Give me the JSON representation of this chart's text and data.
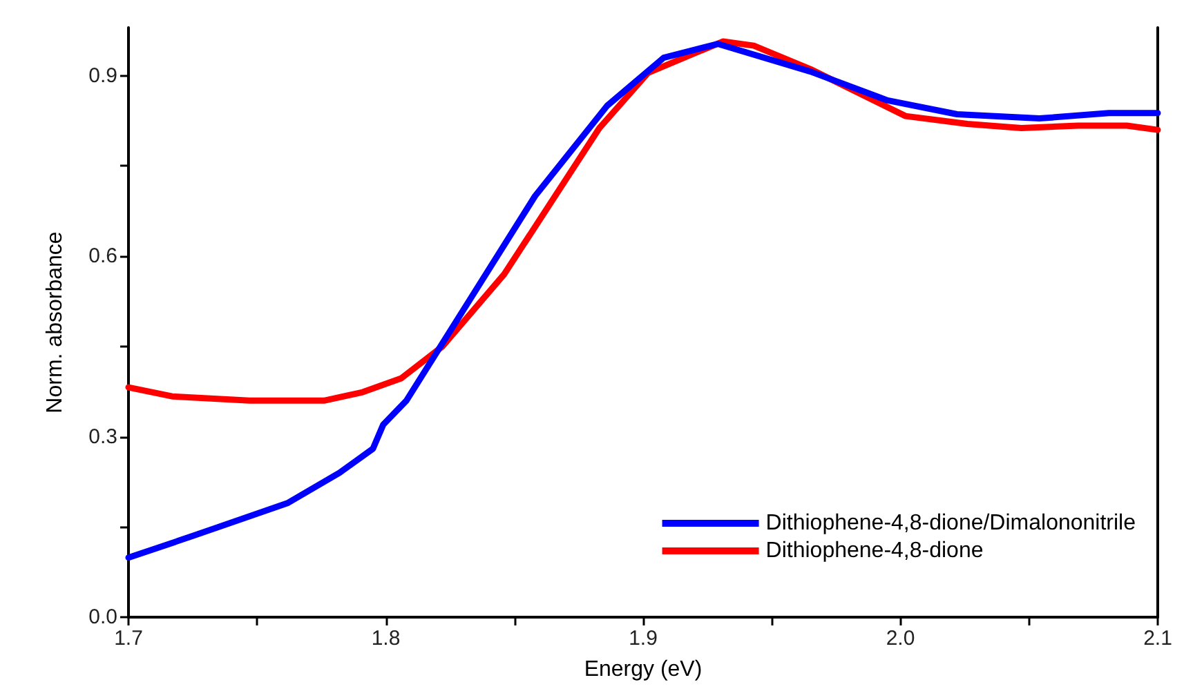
{
  "chart_data": {
    "type": "line",
    "xlabel": "Energy (eV)",
    "ylabel": "Norm. absorbance",
    "xlim": [
      1.7,
      2.1
    ],
    "ylim": [
      0,
      0.98
    ],
    "xticks": [
      1.7,
      {
        "value": 1.75,
        "label": null
      },
      1.8,
      {
        "value": 1.85,
        "label": null
      },
      1.9,
      {
        "value": 1.95,
        "label": null
      },
      {
        "value": 2.0,
        "label": "2.0"
      },
      {
        "value": 2.05,
        "label": null
      },
      2.1
    ],
    "yticks": [
      {
        "value": 0,
        "label": "0.0"
      },
      {
        "value": 0.15,
        "label": null
      },
      0.3,
      {
        "value": 0.45,
        "label": null
      },
      0.6,
      {
        "value": 0.75,
        "label": null
      },
      0.9
    ],
    "legend": "bottom right",
    "grid": false,
    "marker": "none",
    "line_style": "solid",
    "series": [
      {
        "name": "Dithiophene-4,8-dione/Dimalononitrile",
        "color": "#0000ff",
        "x": [
          1.7,
          1.725,
          1.762,
          1.782,
          1.795,
          1.799,
          1.808,
          1.833,
          1.858,
          1.886,
          1.908,
          1.929,
          1.965,
          1.995,
          2.022,
          2.054,
          2.081,
          2.1
        ],
        "values": [
          0.099,
          0.135,
          0.19,
          0.24,
          0.28,
          0.32,
          0.36,
          0.53,
          0.7,
          0.85,
          0.93,
          0.953,
          0.907,
          0.859,
          0.836,
          0.829,
          0.838,
          0.838
        ]
      },
      {
        "name": "Dithiophene-4,8-dione",
        "color": "#ff0000",
        "x": [
          1.7,
          1.717,
          1.747,
          1.776,
          1.791,
          1.806,
          1.822,
          1.846,
          1.883,
          1.902,
          1.931,
          1.943,
          1.965,
          2.002,
          2.026,
          2.047,
          2.069,
          2.088,
          2.1
        ],
        "values": [
          0.382,
          0.367,
          0.36,
          0.36,
          0.374,
          0.397,
          0.45,
          0.57,
          0.813,
          0.905,
          0.957,
          0.95,
          0.911,
          0.833,
          0.82,
          0.813,
          0.817,
          0.817,
          0.81
        ]
      }
    ]
  }
}
